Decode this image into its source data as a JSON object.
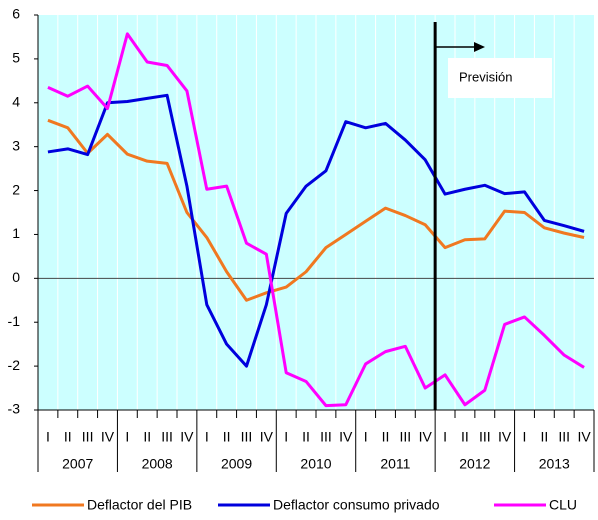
{
  "chart_data": {
    "type": "line",
    "categories": [
      "I",
      "II",
      "III",
      "IV",
      "I",
      "II",
      "III",
      "IV",
      "I",
      "II",
      "III",
      "IV",
      "I",
      "II",
      "III",
      "IV",
      "I",
      "II",
      "III",
      "IV",
      "I",
      "II",
      "III",
      "IV",
      "I",
      "II",
      "III",
      "IV"
    ],
    "years": [
      "2007",
      "2008",
      "2009",
      "2010",
      "2011",
      "2012",
      "2013"
    ],
    "series": [
      {
        "name": "Deflactor del PIB",
        "color": "#f07820",
        "values": [
          3.6,
          3.43,
          2.85,
          3.28,
          2.83,
          2.67,
          2.62,
          1.5,
          0.93,
          0.15,
          -0.5,
          -0.33,
          -0.2,
          0.15,
          0.7,
          1.0,
          1.3,
          1.6,
          1.43,
          1.22,
          0.7,
          0.88,
          0.9,
          1.53,
          1.5,
          1.15,
          1.03,
          0.93
        ]
      },
      {
        "name": "Deflactor consumo privado",
        "color": "#0000dd",
        "values": [
          2.88,
          2.95,
          2.82,
          4.0,
          4.03,
          4.1,
          4.17,
          2.1,
          -0.6,
          -1.5,
          -2.0,
          -0.6,
          1.48,
          2.1,
          2.45,
          3.57,
          3.43,
          3.53,
          3.15,
          2.7,
          1.92,
          2.03,
          2.12,
          1.93,
          1.97,
          1.32,
          1.2,
          1.07
        ]
      },
      {
        "name": "CLU",
        "color": "#ff00ff",
        "values": [
          4.35,
          4.15,
          4.38,
          3.87,
          5.57,
          4.93,
          4.85,
          4.27,
          2.03,
          2.1,
          0.8,
          0.55,
          -2.15,
          -2.35,
          -2.9,
          -2.88,
          -1.95,
          -1.67,
          -1.55,
          -2.5,
          -2.2,
          -2.88,
          -2.55,
          -1.05,
          -0.88,
          -1.3,
          -1.75,
          -2.03
        ]
      }
    ],
    "annotation": "Previsión",
    "ylim": [
      -3,
      6
    ],
    "yticks": [
      -3,
      -2,
      -1,
      0,
      1,
      2,
      3,
      4,
      5,
      6
    ]
  }
}
